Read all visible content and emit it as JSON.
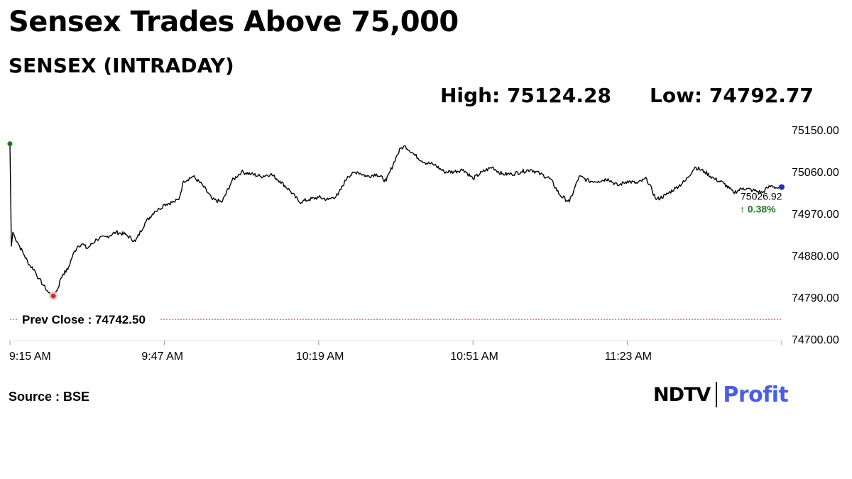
{
  "headline": "Sensex Trades Above 75,000",
  "subtitle": "SENSEX (INTRADAY)",
  "stats": {
    "high": "High: 75124.28",
    "low": "Low: 74792.77"
  },
  "source": "Source : BSE",
  "logo": {
    "ndtv": "NDTV",
    "profit": "Profit"
  },
  "colors": {
    "line": "#000000",
    "open_marker": "#1a7a1a",
    "low_marker": "#c0392b",
    "last_marker": "#2233aa",
    "prev_close_line": "#c0392b",
    "change_text": "#1f7a1f",
    "brand_profit": "#4a5fe0"
  },
  "chart_data": {
    "type": "line",
    "title": "SENSEX (INTRADAY)",
    "x_ticks": [
      "9:15 AM",
      "9:47 AM",
      "10:19 AM",
      "10:51 AM",
      "11:23 AM"
    ],
    "x_tick_minutes": [
      0,
      32,
      64,
      96,
      128
    ],
    "x_range_minutes": [
      0,
      160
    ],
    "y_ticks": [
      "75150.00",
      "75060.00",
      "74970.00",
      "74880.00",
      "74790.00",
      "74700.00"
    ],
    "y_tick_values": [
      75150,
      75060,
      74970,
      74880,
      74790,
      74700
    ],
    "ylim": [
      74700,
      75150
    ],
    "prev_close": {
      "label": "Prev Close : 74742.50",
      "value": 74742.5
    },
    "last": {
      "value_label": "75026.92",
      "change_label": "↑ 0.38%",
      "value": 75026.92
    },
    "high": 75124.28,
    "low": 74792.77,
    "series": [
      {
        "x": [
          0,
          0.3,
          0.6,
          1,
          2,
          3,
          4,
          5,
          6,
          7,
          8,
          9,
          10,
          10.5,
          11,
          12,
          13,
          14,
          15,
          16,
          18,
          20,
          22,
          24,
          26,
          28,
          30,
          31,
          32,
          34,
          35,
          36,
          38,
          40,
          42,
          44,
          46,
          48,
          50,
          52,
          54,
          56,
          58,
          60,
          62,
          64,
          66,
          68,
          70,
          72,
          74,
          76,
          78,
          80,
          81,
          82,
          84,
          86,
          88,
          90,
          92,
          94,
          96,
          98,
          100,
          102,
          104,
          106,
          108,
          110,
          112,
          114,
          116,
          118,
          120,
          122,
          124,
          126,
          128,
          130,
          132,
          134,
          136,
          138,
          140,
          142,
          144,
          146,
          148,
          150,
          152,
          154,
          156,
          157,
          158,
          159,
          160
        ],
        "y": [
          75120,
          74900,
          74930,
          74920,
          74900,
          74880,
          74860,
          74850,
          74830,
          74815,
          74800,
          74793,
          74810,
          74830,
          74840,
          74850,
          74880,
          74900,
          74905,
          74895,
          74915,
          74920,
          74930,
          74925,
          74910,
          74950,
          74975,
          74980,
          74990,
          74995,
          75000,
          75040,
          75050,
          75030,
          75000,
          74995,
          75040,
          75060,
          75055,
          75050,
          75055,
          75040,
          75020,
          74995,
          75000,
          75005,
          75000,
          75010,
          75050,
          75060,
          75050,
          75055,
          75040,
          75090,
          75110,
          75115,
          75095,
          75080,
          75075,
          75060,
          75060,
          75065,
          75045,
          75060,
          75070,
          75055,
          75055,
          75060,
          75065,
          75055,
          75045,
          75010,
          74995,
          75050,
          75040,
          75040,
          75045,
          75030,
          75040,
          75035,
          75045,
          75000,
          75010,
          75025,
          75040,
          75070,
          75060,
          75045,
          75035,
          75015,
          75025,
          75020,
          75015,
          75025,
          75030,
          75025,
          75027
        ]
      }
    ]
  }
}
